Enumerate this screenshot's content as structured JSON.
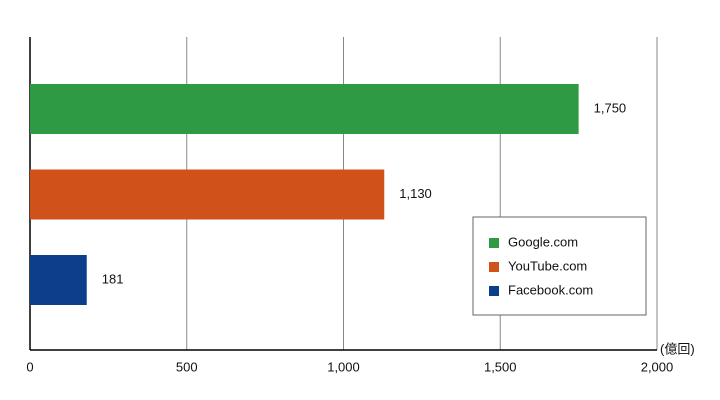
{
  "chart_data": {
    "type": "bar",
    "orientation": "horizontal",
    "x_unit": "(億回)",
    "series": [
      {
        "name": "Google.com",
        "color": "#2e9b44",
        "values": [
          1750
        ],
        "value_labels": [
          "1,750"
        ]
      },
      {
        "name": "YouTube.com",
        "color": "#d0521a",
        "values": [
          1130
        ],
        "value_labels": [
          "1,130"
        ]
      },
      {
        "name": "Facebook.com",
        "color": "#0b3f8c",
        "values": [
          181
        ],
        "value_labels": [
          "181"
        ]
      }
    ],
    "xlim": [
      0,
      2000
    ],
    "xticks": [
      0,
      500,
      {
        "value": 1000,
        "label": "1,000"
      },
      {
        "value": 1500,
        "label": "1,500"
      },
      {
        "value": 2000,
        "label": "2,000"
      }
    ],
    "grid": true,
    "legend": "lower right"
  }
}
